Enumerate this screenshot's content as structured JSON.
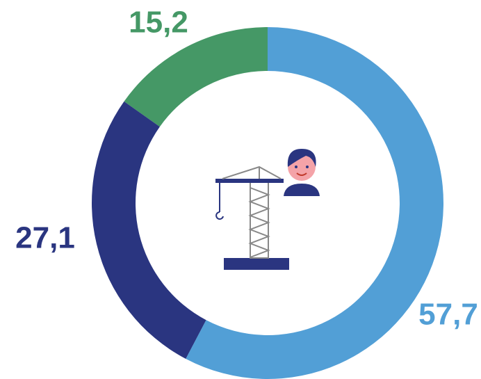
{
  "chart_data": {
    "type": "donut",
    "values": [
      57.7,
      27.1,
      15.2
    ],
    "value_labels": [
      "57,7",
      "27,1",
      "15,2"
    ],
    "colors": [
      "#529fd6",
      "#2a3580",
      "#459866"
    ]
  }
}
